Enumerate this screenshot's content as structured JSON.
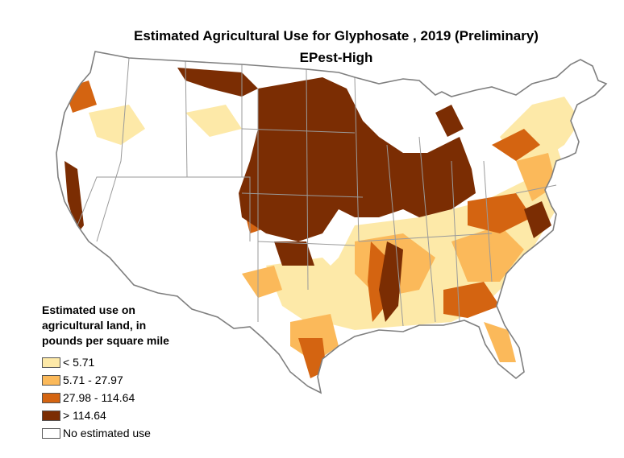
{
  "title": "Estimated Agricultural Use for Glyphosate , 2019 (Preliminary)",
  "subtitle": "EPest-High",
  "legend": {
    "title_lines": [
      "Estimated use on",
      "agricultural land, in",
      "pounds per square mile"
    ],
    "items": [
      {
        "label": "< 5.71",
        "color": "#fde9a8"
      },
      {
        "label": "5.71 - 27.97",
        "color": "#fbb95a"
      },
      {
        "label": "27.98 - 114.64",
        "color": "#d46411"
      },
      {
        "label": "> 114.64",
        "color": "#7b2d03"
      },
      {
        "label": "No estimated use",
        "color": "#ffffff"
      }
    ]
  },
  "colors": {
    "state_border": "#9a9a9a",
    "nation_border": "#7f7f7f"
  }
}
